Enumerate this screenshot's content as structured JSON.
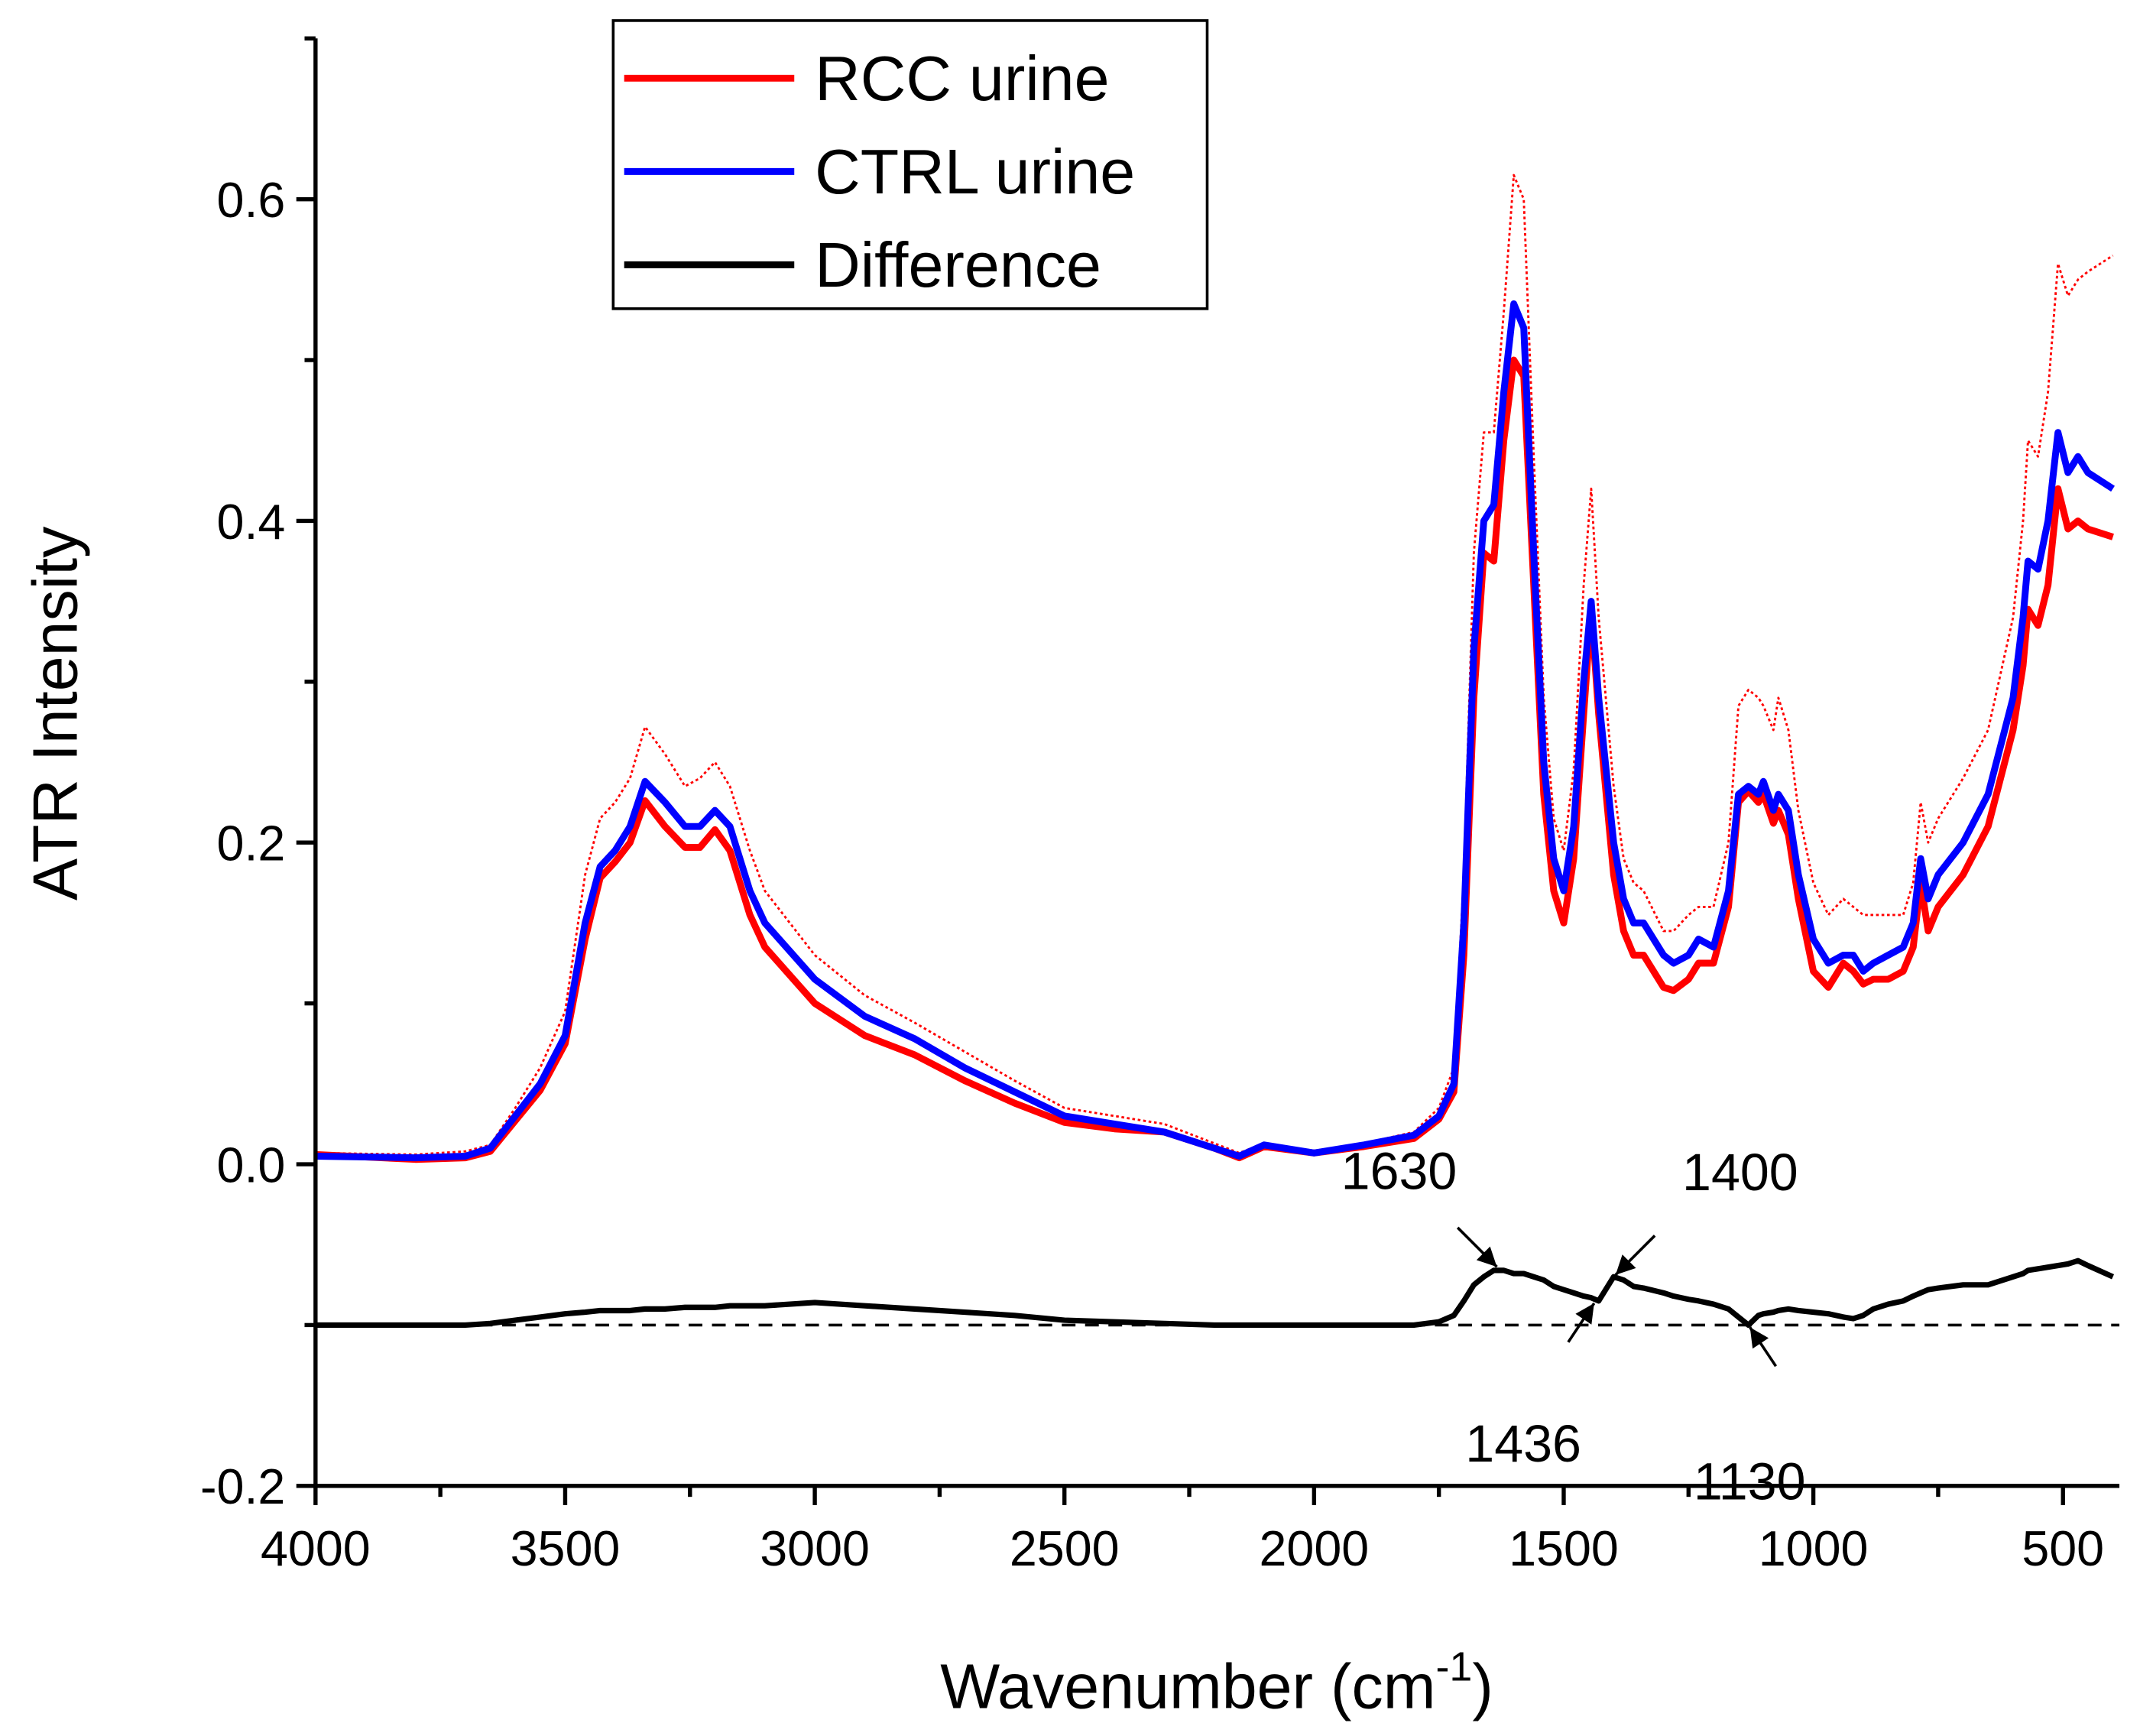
{
  "chart_data": {
    "type": "line",
    "xlabel": [
      "Wavenumber (cm",
      "-1",
      ")"
    ],
    "ylabel": "ATR Intensity",
    "x": [
      4000,
      3800,
      3700,
      3650,
      3600,
      3550,
      3500,
      3460,
      3430,
      3400,
      3370,
      3340,
      3300,
      3260,
      3230,
      3200,
      3170,
      3130,
      3100,
      3000,
      2900,
      2800,
      2700,
      2600,
      2500,
      2400,
      2300,
      2200,
      2150,
      2100,
      2000,
      1900,
      1800,
      1750,
      1720,
      1700,
      1680,
      1660,
      1640,
      1620,
      1600,
      1580,
      1560,
      1540,
      1520,
      1500,
      1480,
      1460,
      1445,
      1430,
      1400,
      1380,
      1360,
      1340,
      1300,
      1280,
      1250,
      1230,
      1200,
      1170,
      1150,
      1130,
      1110,
      1100,
      1080,
      1070,
      1050,
      1030,
      1000,
      970,
      940,
      920,
      900,
      880,
      850,
      820,
      800,
      785,
      770,
      750,
      700,
      650,
      600,
      580,
      570,
      550,
      530,
      510,
      490,
      470,
      450,
      400
    ],
    "series": [
      {
        "name": "RCC urine",
        "color": "#ff0000",
        "style": "solid",
        "values": [
          0.006,
          0.003,
          0.004,
          0.008,
          0.027,
          0.046,
          0.075,
          0.14,
          0.178,
          0.188,
          0.2,
          0.226,
          0.21,
          0.197,
          0.197,
          0.208,
          0.195,
          0.155,
          0.135,
          0.1,
          0.08,
          0.068,
          0.052,
          0.038,
          0.026,
          0.022,
          0.02,
          0.01,
          0.004,
          0.011,
          0.007,
          0.011,
          0.016,
          0.028,
          0.045,
          0.13,
          0.29,
          0.38,
          0.375,
          0.45,
          0.5,
          0.49,
          0.36,
          0.23,
          0.17,
          0.15,
          0.19,
          0.28,
          0.345,
          0.28,
          0.18,
          0.145,
          0.13,
          0.13,
          0.11,
          0.108,
          0.115,
          0.125,
          0.125,
          0.16,
          0.225,
          0.232,
          0.225,
          0.23,
          0.212,
          0.22,
          0.205,
          0.165,
          0.12,
          0.11,
          0.125,
          0.12,
          0.112,
          0.115,
          0.115,
          0.12,
          0.135,
          0.175,
          0.145,
          0.16,
          0.18,
          0.21,
          0.27,
          0.31,
          0.345,
          0.335,
          0.36,
          0.42,
          0.395,
          0.4,
          0.395,
          0.39
        ]
      },
      {
        "name": "CTRL urine",
        "color": "#0000ff",
        "style": "solid",
        "values": [
          0.005,
          0.004,
          0.005,
          0.01,
          0.03,
          0.05,
          0.08,
          0.15,
          0.185,
          0.195,
          0.21,
          0.238,
          0.225,
          0.21,
          0.21,
          0.22,
          0.21,
          0.17,
          0.15,
          0.115,
          0.092,
          0.078,
          0.06,
          0.045,
          0.03,
          0.025,
          0.02,
          0.01,
          0.005,
          0.012,
          0.007,
          0.012,
          0.018,
          0.03,
          0.05,
          0.15,
          0.32,
          0.4,
          0.41,
          0.48,
          0.535,
          0.52,
          0.38,
          0.25,
          0.19,
          0.17,
          0.21,
          0.3,
          0.35,
          0.29,
          0.2,
          0.165,
          0.15,
          0.15,
          0.13,
          0.125,
          0.13,
          0.14,
          0.135,
          0.17,
          0.23,
          0.235,
          0.23,
          0.238,
          0.22,
          0.23,
          0.22,
          0.18,
          0.14,
          0.125,
          0.13,
          0.13,
          0.12,
          0.125,
          0.13,
          0.135,
          0.15,
          0.19,
          0.165,
          0.18,
          0.2,
          0.23,
          0.29,
          0.34,
          0.375,
          0.37,
          0.4,
          0.455,
          0.43,
          0.44,
          0.43,
          0.42
        ]
      },
      {
        "name": "Difference",
        "color": "#000000",
        "style": "solid",
        "values": [
          -0.1,
          -0.1,
          -0.1,
          -0.099,
          -0.097,
          -0.095,
          -0.093,
          -0.092,
          -0.091,
          -0.091,
          -0.091,
          -0.09,
          -0.09,
          -0.089,
          -0.089,
          -0.089,
          -0.088,
          -0.088,
          -0.088,
          -0.086,
          -0.088,
          -0.09,
          -0.092,
          -0.094,
          -0.097,
          -0.098,
          -0.099,
          -0.1,
          -0.1,
          -0.1,
          -0.1,
          -0.1,
          -0.1,
          -0.098,
          -0.094,
          -0.085,
          -0.075,
          -0.07,
          -0.066,
          -0.066,
          -0.068,
          -0.068,
          -0.07,
          -0.072,
          -0.076,
          -0.078,
          -0.08,
          -0.082,
          -0.083,
          -0.085,
          -0.07,
          -0.072,
          -0.076,
          -0.077,
          -0.08,
          -0.082,
          -0.084,
          -0.085,
          -0.087,
          -0.09,
          -0.095,
          -0.1,
          -0.094,
          -0.093,
          -0.092,
          -0.091,
          -0.09,
          -0.091,
          -0.092,
          -0.093,
          -0.095,
          -0.096,
          -0.094,
          -0.09,
          -0.087,
          -0.085,
          -0.082,
          -0.08,
          -0.078,
          -0.077,
          -0.075,
          -0.075,
          -0.07,
          -0.068,
          -0.066,
          -0.065,
          -0.064,
          -0.063,
          -0.062,
          -0.06,
          -0.063,
          -0.07
        ]
      },
      {
        "color": "#ff0000",
        "style": "dotted",
        "values": [
          0.007,
          0.006,
          0.008,
          0.012,
          0.035,
          0.06,
          0.095,
          0.18,
          0.215,
          0.225,
          0.24,
          0.272,
          0.255,
          0.235,
          0.24,
          0.25,
          0.235,
          0.195,
          0.17,
          0.13,
          0.105,
          0.088,
          0.07,
          0.052,
          0.035,
          0.03,
          0.025,
          0.013,
          0.007,
          0.013,
          0.008,
          0.013,
          0.02,
          0.035,
          0.06,
          0.18,
          0.38,
          0.455,
          0.455,
          0.53,
          0.615,
          0.6,
          0.44,
          0.29,
          0.215,
          0.195,
          0.245,
          0.36,
          0.42,
          0.34,
          0.235,
          0.19,
          0.175,
          0.17,
          0.145,
          0.145,
          0.155,
          0.16,
          0.16,
          0.2,
          0.285,
          0.295,
          0.29,
          0.285,
          0.27,
          0.29,
          0.27,
          0.22,
          0.175,
          0.155,
          0.165,
          0.16,
          0.155,
          0.155,
          0.155,
          0.155,
          0.175,
          0.225,
          0.2,
          0.215,
          0.24,
          0.27,
          0.34,
          0.4,
          0.45,
          0.44,
          0.48,
          0.56,
          0.54,
          0.55,
          0.555,
          0.565
        ]
      }
    ],
    "xlim": [
      4000,
      387
    ],
    "xticks": [
      4000,
      3500,
      3000,
      2500,
      2000,
      1500,
      1000,
      500
    ],
    "xminor_ticks": [
      3750,
      3250,
      2750,
      2250,
      1750,
      1250,
      750
    ],
    "ylim": [
      -0.2,
      0.7
    ],
    "yticks": [
      {
        "value": -0.2,
        "label": "-0.2"
      },
      {
        "value": 0,
        "label": "0.0"
      },
      {
        "value": 0.2,
        "label": "0.2"
      },
      {
        "value": 0.4,
        "label": "0.4"
      },
      {
        "value": 0.6,
        "label": "0.6"
      }
    ],
    "yminor_ticks": [
      -0.1,
      0.1,
      0.3,
      0.5,
      0.7
    ],
    "reference_line": -0.1,
    "annotations": [
      {
        "text": "1630",
        "x": 1630,
        "y": -0.065
      },
      {
        "text": "1400",
        "x": 1400,
        "y": -0.07
      },
      {
        "text": "1436",
        "x": 1436,
        "y": -0.085
      },
      {
        "text": "1130",
        "x": 1130,
        "y": -0.1
      }
    ],
    "legend": "upper left",
    "grid": false
  }
}
